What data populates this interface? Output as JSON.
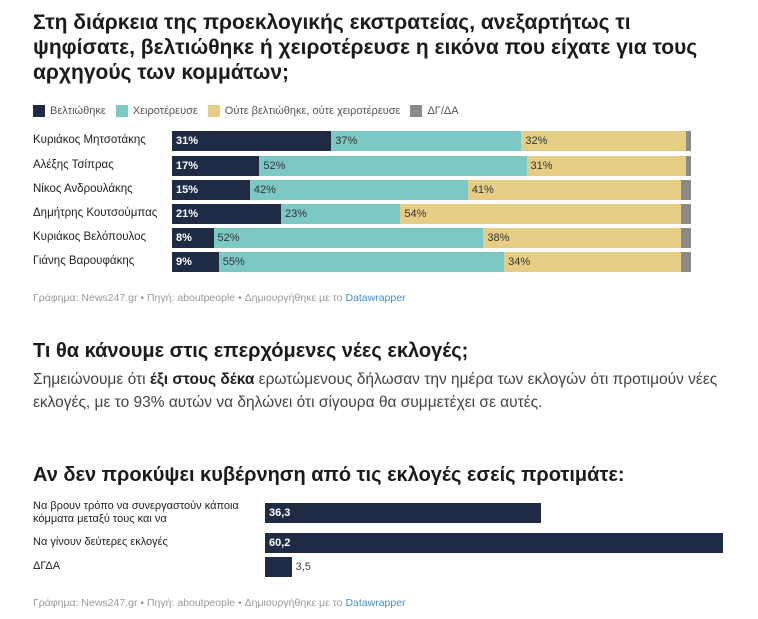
{
  "chart1": {
    "title": "Στη διάρκεια της προεκλογικής εκστρατείας, ανεξαρτήτως τι ψηφίσατε, βελτιώθηκε ή χειροτέρευσε η εικόνα που είχατε για τους αρχηγούς των κομμάτων;",
    "legend": [
      "Βελτιώθηκε",
      "Χειροτέρευσε",
      "Ούτε βελτιώθηκε, ούτε χειροτέρευσε",
      "ΔΓ/ΔΑ"
    ],
    "credit": {
      "prefix": "Γράφημα: News247.gr • Πηγή: aboutpeople • Δημιουργήθηκε με το ",
      "link": "Datawrapper"
    }
  },
  "section2": {
    "heading": "Τι θα κάνουμε στις επερχόμενες νέες εκλογές;",
    "para_before": "Σημειώνουμε ότι ",
    "para_bold": "έξι στους δέκα",
    "para_after": " ερωτώμενους δήλωσαν την ημέρα των εκλογών ότι προτιμούν νέες εκλογές, με το 93% αυτών να δηλώνει ότι σίγουρα θα συμμετέχει σε αυτές."
  },
  "chart2": {
    "title": "Αν δεν προκύψει κυβέρνηση από τις εκλογές εσείς προτιμάτε:",
    "credit": {
      "prefix": "Γράφημα: News247.gr • Πηγή: aboutpeople • Δημιουργήθηκε με το ",
      "link": "Datawrapper"
    }
  },
  "chart_data": [
    {
      "type": "bar",
      "stacked": true,
      "orientation": "horizontal",
      "title": "Στη διάρκεια της προεκλογικής εκστρατείας, ανεξαρτήτως τι ψηφίσατε, βελτιώθηκε ή χειροτέρευσε η εικόνα που είχατε για τους αρχηγούς των κομμάτων;",
      "categories": [
        "Κυριάκος Μητσοτάκης",
        "Αλέξης Τσίπρας",
        "Νίκος Ανδρουλάκης",
        "Δημήτρης Κουτσούμπας",
        "Κυριάκος Βελόπουλος",
        "Γιάνης Βαρουφάκης"
      ],
      "series": [
        {
          "name": "Βελτιώθηκε",
          "color": "#1f2a44",
          "values": [
            31,
            17,
            15,
            21,
            8,
            9
          ]
        },
        {
          "name": "Χειροτέρευσε",
          "color": "#7cc8c4",
          "values": [
            37,
            52,
            42,
            23,
            52,
            55
          ]
        },
        {
          "name": "Ούτε βελτιώθηκε, ούτε χειροτέρευσε",
          "color": "#e6cd85",
          "values": [
            32,
            31,
            41,
            54,
            38,
            34
          ]
        },
        {
          "name": "ΔΓ/ΔΑ",
          "color": "#8a8a8a",
          "values": [
            1,
            1,
            2,
            2,
            2,
            2
          ]
        }
      ],
      "labels": [
        [
          "31%",
          "37%",
          "32%",
          ""
        ],
        [
          "17%",
          "52%",
          "31%",
          ""
        ],
        [
          "15%",
          "42%",
          "41%",
          ""
        ],
        [
          "21%",
          "23%",
          "54%",
          ""
        ],
        [
          "8%",
          "52%",
          "38%",
          ""
        ],
        [
          "9%",
          "55%",
          "34%",
          ""
        ]
      ],
      "legend_position": "top-left"
    },
    {
      "type": "bar",
      "orientation": "horizontal",
      "title": "Αν δεν προκύψει κυβέρνηση από τις εκλογές εσείς προτιμάτε:",
      "categories": [
        "Να βρουν τρόπο να συνεργαστούν κάποια κόμματα μεταξύ τους και να",
        "Να γίνουν δεύτερες εκλογές",
        "ΔΓΔΑ"
      ],
      "values": [
        36.3,
        60.2,
        3.5
      ],
      "labels": [
        "36,3",
        "60,2",
        "3,5"
      ],
      "color": "#1f2a44",
      "xlim": [
        0,
        60.2
      ]
    }
  ]
}
